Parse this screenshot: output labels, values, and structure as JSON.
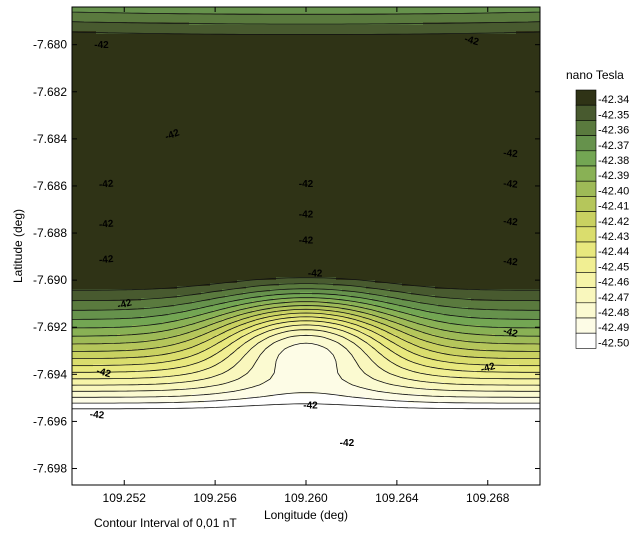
{
  "chart_data": {
    "type": "contour",
    "xlabel": "Longitude (deg)",
    "ylabel": "Latitude (deg)",
    "xlim": [
      109.2497,
      109.2703
    ],
    "ylim": [
      -7.6987,
      -7.6784
    ],
    "x_ticks": [
      109.252,
      109.256,
      109.26,
      109.264,
      109.268
    ],
    "x_tick_labels": [
      "109.252",
      "109.256",
      "109.260",
      "109.264",
      "109.268"
    ],
    "y_ticks": [
      -7.68,
      -7.682,
      -7.684,
      -7.686,
      -7.688,
      -7.69,
      -7.692,
      -7.694,
      -7.696,
      -7.698
    ],
    "y_tick_labels": [
      "-7.680",
      "-7.682",
      "-7.684",
      "-7.686",
      "-7.688",
      "-7.690",
      "-7.692",
      "-7.694",
      "-7.696",
      "-7.698"
    ],
    "contour_interval_note": "Contour Interval of 0,01 nT",
    "contour_label_text": "-42",
    "colorbar": {
      "title": "nano Tesla",
      "levels": [
        -42.34,
        -42.35,
        -42.36,
        -42.37,
        -42.38,
        -42.39,
        -42.4,
        -42.41,
        -42.42,
        -42.43,
        -42.44,
        -42.45,
        -42.46,
        -42.47,
        -42.48,
        -42.49,
        -42.5
      ],
      "labels": [
        "-42.34",
        "-42.35",
        "-42.36",
        "-42.37",
        "-42.38",
        "-42.39",
        "-42.40",
        "-42.41",
        "-42.42",
        "-42.43",
        "-42.44",
        "-42.45",
        "-42.46",
        "-42.47",
        "-42.48",
        "-42.49",
        "-42.50"
      ],
      "colors": [
        "#2f3316",
        "#485a2f",
        "#5a7a3e",
        "#66924c",
        "#73a653",
        "#89b155",
        "#9eba57",
        "#b5c65b",
        "#c9d161",
        "#dadd6d",
        "#e8e87e",
        "#f1ef93",
        "#f6f4a8",
        "#f9f7bd",
        "#fbfad1",
        "#fdfce6",
        "#ffffff"
      ]
    },
    "field_model": {
      "description_free": true,
      "base": -42.3935,
      "center_x": 109.26,
      "center_y": -7.6925,
      "north_gradient_per_deg": 36.5,
      "north_curvature_per_deg2": 3200,
      "saddle_x_factor_per_deg2": 230000,
      "min_depth": 0.082,
      "min_sx": 0.0028,
      "min_sy": 0.0013
    },
    "contour_labels": [
      {
        "x": 109.251,
        "y": -7.68,
        "angle": 0
      },
      {
        "x": 109.2541,
        "y": -7.6838,
        "angle": -20
      },
      {
        "x": 109.2512,
        "y": -7.6859,
        "angle": -5
      },
      {
        "x": 109.2512,
        "y": -7.6876,
        "angle": -5
      },
      {
        "x": 109.2512,
        "y": -7.6891,
        "angle": -5
      },
      {
        "x": 109.252,
        "y": -7.691,
        "angle": -15
      },
      {
        "x": 109.2511,
        "y": -7.6939,
        "angle": 15
      },
      {
        "x": 109.2508,
        "y": -7.6957,
        "angle": 5
      },
      {
        "x": 109.26,
        "y": -7.6859,
        "angle": 0
      },
      {
        "x": 109.26,
        "y": -7.6872,
        "angle": 0
      },
      {
        "x": 109.26,
        "y": -7.6883,
        "angle": 0
      },
      {
        "x": 109.2604,
        "y": -7.6897,
        "angle": 0
      },
      {
        "x": 109.2602,
        "y": -7.6953,
        "angle": 0
      },
      {
        "x": 109.2618,
        "y": -7.6969,
        "angle": 0
      },
      {
        "x": 109.2673,
        "y": -7.6798,
        "angle": 15
      },
      {
        "x": 109.269,
        "y": -7.6846,
        "angle": 5
      },
      {
        "x": 109.269,
        "y": -7.6859,
        "angle": 5
      },
      {
        "x": 109.269,
        "y": -7.6875,
        "angle": 5
      },
      {
        "x": 109.269,
        "y": -7.6892,
        "angle": 5
      },
      {
        "x": 109.269,
        "y": -7.6922,
        "angle": 15
      },
      {
        "x": 109.268,
        "y": -7.6937,
        "angle": -15
      }
    ]
  }
}
